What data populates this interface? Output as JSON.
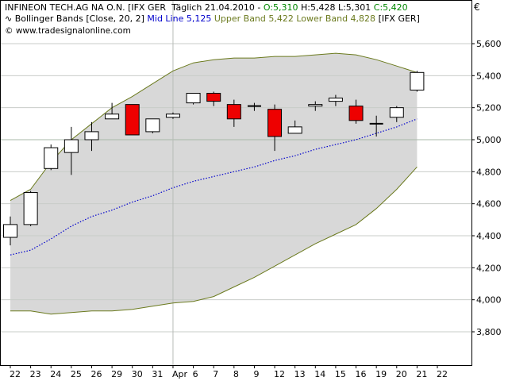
{
  "header": {
    "line1": {
      "instrument": "INFINEON TECH.AG NA O.N. [IFX GER",
      "period": "Täglich",
      "date": "21.04.2010",
      "open": "O:5,310",
      "high": "H:5,428",
      "low": "L:5,301",
      "close": "C:5,420"
    },
    "line2": {
      "indicator": "Bollinger Bands [Close, 20, 2]",
      "mid": "Mid Line 5,125",
      "bands": "Upper Band 5,422 Lower Band 4,828",
      "symbol": "[IFX GER]"
    },
    "line3": {
      "copyright": "©",
      "site": "www.tradesignalonline.com"
    }
  },
  "currency": "€",
  "colors": {
    "up_candle": "#ffffff",
    "down_candle": "#ee0000",
    "band_fill": "#d8d8d8",
    "band_line": "#6b7a1e",
    "mid_line": "#0000cc",
    "grid": "#c8ccc8",
    "open_color": "#008800",
    "close_color": "#008800",
    "mid_text": "#0000cc",
    "band_text": "#6b7a1e"
  },
  "chart_data": {
    "type": "candlestick",
    "title": "INFINEON TECH.AG NA O.N. [IFX GER",
    "ylim": [
      3.6,
      5.8
    ],
    "yticks": [
      "3,800",
      "4,000",
      "4,200",
      "4,400",
      "4,600",
      "4,800",
      "5,000",
      "5,200",
      "5,400",
      "5,600"
    ],
    "ytick_values": [
      3.8,
      4.0,
      4.2,
      4.4,
      4.6,
      4.8,
      5.0,
      5.2,
      5.4,
      5.6
    ],
    "xticks": [
      "22",
      "23",
      "24",
      "25",
      "26",
      "29",
      "30",
      "31",
      "Apr",
      "6",
      "7",
      "8",
      "9",
      "12",
      "13",
      "14",
      "15",
      "16",
      "19",
      "20",
      "21",
      "22"
    ],
    "grid": true,
    "candles": [
      {
        "date": "22",
        "open": 4.39,
        "high": 4.52,
        "low": 4.34,
        "close": 4.47
      },
      {
        "date": "23",
        "open": 4.47,
        "high": 4.68,
        "low": 4.46,
        "close": 4.67
      },
      {
        "date": "24",
        "open": 4.82,
        "high": 4.97,
        "low": 4.81,
        "close": 4.95
      },
      {
        "date": "25",
        "open": 4.92,
        "high": 5.08,
        "low": 4.78,
        "close": 5.0
      },
      {
        "date": "26",
        "open": 5.0,
        "high": 5.11,
        "low": 4.93,
        "close": 5.05
      },
      {
        "date": "29",
        "open": 5.13,
        "high": 5.23,
        "low": 5.13,
        "close": 5.16
      },
      {
        "date": "30",
        "open": 5.22,
        "high": 5.22,
        "low": 5.03,
        "close": 5.03
      },
      {
        "date": "31",
        "open": 5.05,
        "high": 5.13,
        "low": 5.04,
        "close": 5.13
      },
      {
        "date": "1",
        "open": 5.14,
        "high": 5.17,
        "low": 5.13,
        "close": 5.16
      },
      {
        "date": "6",
        "open": 5.23,
        "high": 5.29,
        "low": 5.22,
        "close": 5.29
      },
      {
        "date": "7",
        "open": 5.29,
        "high": 5.3,
        "low": 5.21,
        "close": 5.24
      },
      {
        "date": "8",
        "open": 5.22,
        "high": 5.25,
        "low": 5.08,
        "close": 5.13
      },
      {
        "date": "9",
        "open": 5.21,
        "high": 5.23,
        "low": 5.18,
        "close": 5.21
      },
      {
        "date": "12",
        "open": 5.19,
        "high": 5.22,
        "low": 4.93,
        "close": 5.02
      },
      {
        "date": "13",
        "open": 5.04,
        "high": 5.12,
        "low": 5.04,
        "close": 5.08
      },
      {
        "date": "14",
        "open": 5.21,
        "high": 5.24,
        "low": 5.18,
        "close": 5.22
      },
      {
        "date": "15",
        "open": 5.24,
        "high": 5.28,
        "low": 5.21,
        "close": 5.26
      },
      {
        "date": "16",
        "open": 5.21,
        "high": 5.25,
        "low": 5.1,
        "close": 5.12
      },
      {
        "date": "19",
        "open": 5.1,
        "high": 5.15,
        "low": 5.02,
        "close": 5.1
      },
      {
        "date": "20",
        "open": 5.14,
        "high": 5.21,
        "low": 5.11,
        "close": 5.2
      },
      {
        "date": "21",
        "open": 5.31,
        "high": 5.43,
        "low": 5.3,
        "close": 5.42
      }
    ],
    "upper_band": [
      4.62,
      4.69,
      4.86,
      5.0,
      5.1,
      5.2,
      5.27,
      5.35,
      5.43,
      5.48,
      5.5,
      5.51,
      5.51,
      5.52,
      5.52,
      5.53,
      5.54,
      5.53,
      5.5,
      5.46,
      5.42
    ],
    "lower_band": [
      3.93,
      3.93,
      3.91,
      3.92,
      3.93,
      3.93,
      3.94,
      3.96,
      3.98,
      3.99,
      4.02,
      4.08,
      4.14,
      4.21,
      4.28,
      4.35,
      4.41,
      4.47,
      4.57,
      4.69,
      4.83
    ],
    "mid_line": [
      4.28,
      4.31,
      4.38,
      4.46,
      4.52,
      4.56,
      4.61,
      4.65,
      4.7,
      4.74,
      4.77,
      4.8,
      4.83,
      4.87,
      4.9,
      4.94,
      4.97,
      5.0,
      5.04,
      5.08,
      5.13
    ],
    "reference_line": 5.0,
    "vertical_marker": "Apr"
  }
}
